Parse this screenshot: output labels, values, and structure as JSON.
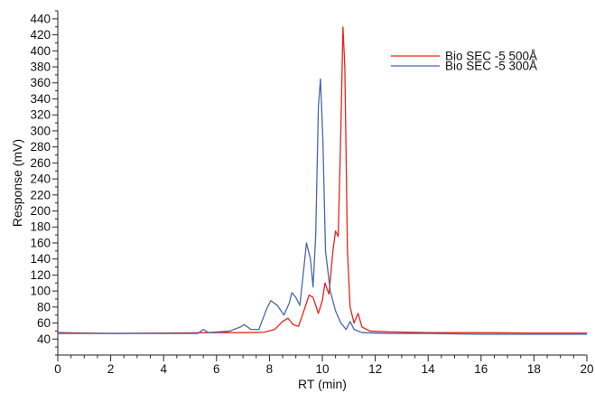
{
  "chart_data": {
    "type": "line",
    "xlabel": "RT (min)",
    "ylabel": "Response (mV)",
    "xlim": [
      0,
      20
    ],
    "ylim": [
      20,
      450
    ],
    "x_ticks": [
      0,
      2,
      4,
      6,
      8,
      10,
      12,
      14,
      16,
      18,
      20
    ],
    "y_ticks": [
      40,
      60,
      80,
      100,
      120,
      140,
      160,
      180,
      200,
      220,
      240,
      260,
      280,
      300,
      320,
      340,
      360,
      380,
      400,
      420,
      440
    ],
    "grid": false,
    "legend_position": "top-right",
    "series": [
      {
        "name": "Bio SEC -5 500Å",
        "color": "#e8241c",
        "points": [
          [
            0,
            48
          ],
          [
            2,
            47
          ],
          [
            4,
            47.5
          ],
          [
            6,
            48
          ],
          [
            7,
            48
          ],
          [
            7.8,
            48.5
          ],
          [
            8.2,
            52
          ],
          [
            8.5,
            62
          ],
          [
            8.7,
            66
          ],
          [
            8.9,
            58
          ],
          [
            9.1,
            56
          ],
          [
            9.3,
            75
          ],
          [
            9.5,
            95
          ],
          [
            9.65,
            92
          ],
          [
            9.85,
            72
          ],
          [
            10.0,
            88
          ],
          [
            10.1,
            110
          ],
          [
            10.25,
            96
          ],
          [
            10.4,
            150
          ],
          [
            10.5,
            175
          ],
          [
            10.6,
            168
          ],
          [
            10.7,
            300
          ],
          [
            10.78,
            430
          ],
          [
            10.85,
            380
          ],
          [
            10.95,
            150
          ],
          [
            11.05,
            80
          ],
          [
            11.2,
            60
          ],
          [
            11.35,
            72
          ],
          [
            11.5,
            55
          ],
          [
            11.8,
            50
          ],
          [
            12.5,
            49
          ],
          [
            14,
            48
          ],
          [
            16,
            48
          ],
          [
            18,
            47.5
          ],
          [
            20,
            47.5
          ]
        ]
      },
      {
        "name": "Bio SEC -5 300Å",
        "color": "#4a68a8",
        "points": [
          [
            0,
            47
          ],
          [
            2,
            47
          ],
          [
            4,
            47
          ],
          [
            5.3,
            47
          ],
          [
            5.5,
            52
          ],
          [
            5.7,
            48
          ],
          [
            6.5,
            50
          ],
          [
            6.9,
            55
          ],
          [
            7.05,
            58
          ],
          [
            7.3,
            52
          ],
          [
            7.6,
            52
          ],
          [
            7.9,
            78
          ],
          [
            8.05,
            88
          ],
          [
            8.3,
            82
          ],
          [
            8.55,
            70
          ],
          [
            8.75,
            85
          ],
          [
            8.85,
            98
          ],
          [
            9.0,
            92
          ],
          [
            9.15,
            82
          ],
          [
            9.3,
            128
          ],
          [
            9.4,
            160
          ],
          [
            9.55,
            140
          ],
          [
            9.65,
            105
          ],
          [
            9.75,
            170
          ],
          [
            9.85,
            330
          ],
          [
            9.93,
            365
          ],
          [
            10.02,
            290
          ],
          [
            10.12,
            150
          ],
          [
            10.3,
            100
          ],
          [
            10.5,
            75
          ],
          [
            10.7,
            60
          ],
          [
            10.9,
            52
          ],
          [
            11.05,
            62
          ],
          [
            11.2,
            52
          ],
          [
            11.5,
            48
          ],
          [
            12.5,
            47
          ],
          [
            14,
            47
          ],
          [
            16,
            46
          ],
          [
            18,
            46
          ],
          [
            20,
            46
          ]
        ]
      }
    ]
  }
}
